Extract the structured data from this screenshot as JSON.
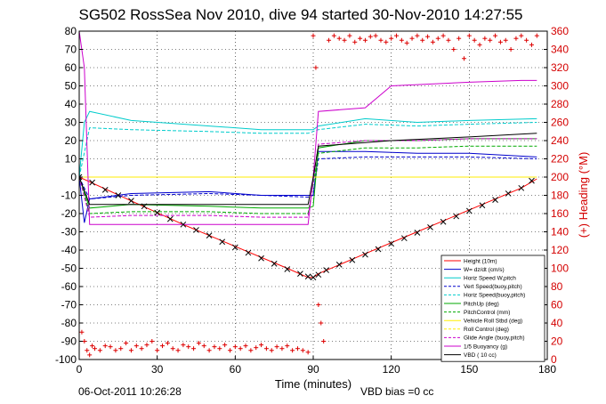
{
  "title": "SG502 RossSea Nov 2010, dive 94 started 30-Nov-2010 14:27:55",
  "footer": {
    "timestamp": "06-Oct-2011 10:26:28",
    "vbd_bias": "VBD bias =0 cc"
  },
  "colors": {
    "heading": "#dd0000",
    "axis": "#000000",
    "grid": "#000000"
  },
  "chart_data": {
    "type": "line",
    "title": "SG502 RossSea Nov 2010, dive 94 started 30-Nov-2010 14:27:55",
    "xlabel": "Time (minutes)",
    "ylabel": "",
    "y2label": "(+) Heading (°M)",
    "xlim": [
      0,
      180
    ],
    "ylim": [
      -100,
      80
    ],
    "y2lim": [
      0,
      360
    ],
    "xticks": [
      0,
      30,
      60,
      90,
      120,
      150,
      180
    ],
    "yticks": [
      -100,
      -90,
      -80,
      -70,
      -60,
      -50,
      -40,
      -30,
      -20,
      -10,
      0,
      10,
      20,
      30,
      40,
      50,
      60,
      70,
      80
    ],
    "y2ticks": [
      0,
      20,
      40,
      60,
      80,
      100,
      120,
      140,
      160,
      180,
      200,
      220,
      240,
      260,
      280,
      300,
      320,
      340,
      360
    ],
    "grid": true,
    "legend_position": "bottom-right",
    "series": [
      {
        "name": "Height (10m)",
        "color": "#ff0000",
        "style": "solid",
        "x": [
          0,
          20,
          40,
          60,
          80,
          88,
          90,
          92,
          110,
          130,
          150,
          170,
          176
        ],
        "y": [
          0,
          -13,
          -26,
          -38,
          -50,
          -55,
          -55,
          -53,
          -42,
          -30,
          -18,
          -6,
          -1
        ]
      },
      {
        "name": "W= dz/dt (cm/s)",
        "color": "#0000cc",
        "style": "solid",
        "x": [
          0,
          2,
          4,
          20,
          50,
          70,
          88,
          90,
          92,
          110,
          130,
          150,
          176
        ],
        "y": [
          0,
          -25,
          -12,
          -9,
          -8,
          -10,
          -10,
          -10,
          14,
          14,
          13,
          13,
          11
        ]
      },
      {
        "name": "Horiz Speed W,pitch",
        "color": "#00cccc",
        "style": "solid",
        "x": [
          0,
          2,
          4,
          20,
          50,
          70,
          88,
          90,
          92,
          110,
          130,
          150,
          176
        ],
        "y": [
          0,
          30,
          36,
          31,
          28,
          26,
          26,
          26,
          28,
          32,
          30,
          31,
          32
        ]
      },
      {
        "name": "Vert Speed(buoy,pitch)",
        "color": "#0000cc",
        "style": "dashed",
        "x": [
          0,
          4,
          20,
          50,
          70,
          88,
          90,
          92,
          110,
          130,
          150,
          176
        ],
        "y": [
          0,
          -12,
          -10,
          -9,
          -10,
          -11,
          -10,
          10,
          11,
          11,
          11,
          10
        ]
      },
      {
        "name": "Horiz Speed(buoy,pitch)",
        "color": "#00cccc",
        "style": "dashed",
        "x": [
          0,
          4,
          20,
          50,
          70,
          88,
          92,
          110,
          130,
          150,
          176
        ],
        "y": [
          0,
          27,
          26,
          25,
          24,
          24,
          26,
          29,
          28,
          29,
          30
        ]
      },
      {
        "name": "PitchUp (deg)",
        "color": "#00aa00",
        "style": "solid",
        "x": [
          0,
          4,
          20,
          50,
          70,
          88,
          90,
          92,
          110,
          130,
          150,
          176
        ],
        "y": [
          0,
          -17,
          -15,
          -16,
          -17,
          -17,
          -16,
          16,
          20,
          20,
          21,
          21
        ]
      },
      {
        "name": "PitchControl (mm)",
        "color": "#00aa00",
        "style": "dashed",
        "x": [
          0,
          4,
          20,
          50,
          70,
          88,
          92,
          110,
          130,
          150,
          176
        ],
        "y": [
          0,
          -20,
          -19,
          -19,
          -20,
          -20,
          13,
          16,
          16,
          17,
          17
        ]
      },
      {
        "name": "Vehicle Roll Stbd (deg)",
        "color": "#ffee00",
        "style": "solid",
        "x": [
          0,
          4,
          20,
          50,
          70,
          88,
          92,
          110,
          130,
          150,
          176
        ],
        "y": [
          0,
          0,
          0,
          0,
          0,
          0,
          0,
          0,
          0,
          0,
          0
        ]
      },
      {
        "name": "Roll Control (deg)",
        "color": "#ffee00",
        "style": "dashed",
        "x": [
          0,
          176
        ],
        "y": [
          0,
          0
        ]
      },
      {
        "name": "Glide Angle (buoy,pitch)",
        "color": "#cc00cc",
        "style": "dashed",
        "x": [
          0,
          4,
          20,
          50,
          70,
          88,
          92,
          110,
          130,
          150,
          176
        ],
        "y": [
          0,
          -22,
          -21,
          -21,
          -22,
          -22,
          18,
          20,
          20,
          21,
          21
        ]
      },
      {
        "name": "1/5 Buoyancy (g)",
        "color": "#cc00cc",
        "style": "solid",
        "x": [
          0,
          2,
          4,
          88,
          90,
          92,
          110,
          120,
          150,
          170,
          176
        ],
        "y": [
          80,
          60,
          -26,
          -26,
          0,
          36,
          38,
          50,
          52,
          53,
          53
        ]
      },
      {
        "name": "VBD ( 10 cc)",
        "color": "#000000",
        "style": "solid",
        "x": [
          0,
          4,
          88,
          90,
          92,
          120,
          150,
          176
        ],
        "y": [
          0,
          -15,
          -15,
          0,
          17,
          20,
          22,
          24
        ]
      }
    ],
    "heading": {
      "name": "(+) Heading (°M)",
      "axis": "right",
      "color": "#dd0000",
      "marker": "+",
      "x": [
        0,
        1,
        2,
        3,
        4,
        5,
        6,
        8,
        10,
        12,
        14,
        16,
        18,
        20,
        22,
        24,
        26,
        28,
        30,
        32,
        34,
        36,
        38,
        40,
        42,
        44,
        46,
        48,
        50,
        52,
        54,
        56,
        58,
        60,
        62,
        64,
        66,
        68,
        70,
        72,
        74,
        76,
        78,
        80,
        82,
        84,
        86,
        88,
        90,
        91,
        92,
        93,
        94,
        96,
        98,
        100,
        102,
        104,
        106,
        108,
        110,
        112,
        114,
        116,
        118,
        120,
        122,
        124,
        126,
        128,
        130,
        132,
        134,
        136,
        138,
        140,
        142,
        144,
        146,
        148,
        150,
        152,
        154,
        156,
        158,
        160,
        162,
        164,
        166,
        168,
        170,
        172,
        174,
        176
      ],
      "y": [
        60,
        30,
        20,
        10,
        5,
        15,
        12,
        10,
        15,
        14,
        10,
        12,
        18,
        10,
        15,
        12,
        16,
        20,
        10,
        15,
        18,
        12,
        10,
        16,
        14,
        12,
        18,
        15,
        10,
        14,
        12,
        16,
        10,
        14,
        12,
        15,
        10,
        13,
        16,
        12,
        10,
        14,
        12,
        15,
        10,
        12,
        10,
        8,
        355,
        320,
        60,
        40,
        20,
        350,
        355,
        352,
        350,
        355,
        348,
        352,
        350,
        354,
        355,
        350,
        348,
        352,
        355,
        350,
        347,
        352,
        355,
        350,
        354,
        348,
        352,
        355,
        350,
        340,
        352,
        330,
        355,
        350,
        345,
        352,
        350,
        355,
        348,
        350,
        340,
        352,
        355,
        350,
        345,
        355
      ]
    },
    "height_markers": {
      "marker": "x",
      "color": "#000000",
      "x": [
        0,
        5,
        10,
        15,
        20,
        25,
        30,
        35,
        40,
        45,
        50,
        55,
        60,
        65,
        70,
        75,
        80,
        85,
        88,
        90,
        92,
        95,
        100,
        105,
        110,
        115,
        120,
        125,
        130,
        135,
        140,
        145,
        150,
        155,
        160,
        165,
        170,
        174
      ],
      "y": [
        0,
        -3,
        -7,
        -10,
        -13,
        -16,
        -19.5,
        -23,
        -26,
        -29,
        -32,
        -35.5,
        -38.5,
        -41.5,
        -44.5,
        -47.5,
        -50.5,
        -53,
        -54.5,
        -55,
        -53.5,
        -51,
        -48,
        -45.5,
        -42.5,
        -39.5,
        -36.5,
        -33.5,
        -30.5,
        -27.5,
        -24.5,
        -21.5,
        -18.5,
        -15.5,
        -12.5,
        -9,
        -6,
        -2
      ]
    }
  }
}
